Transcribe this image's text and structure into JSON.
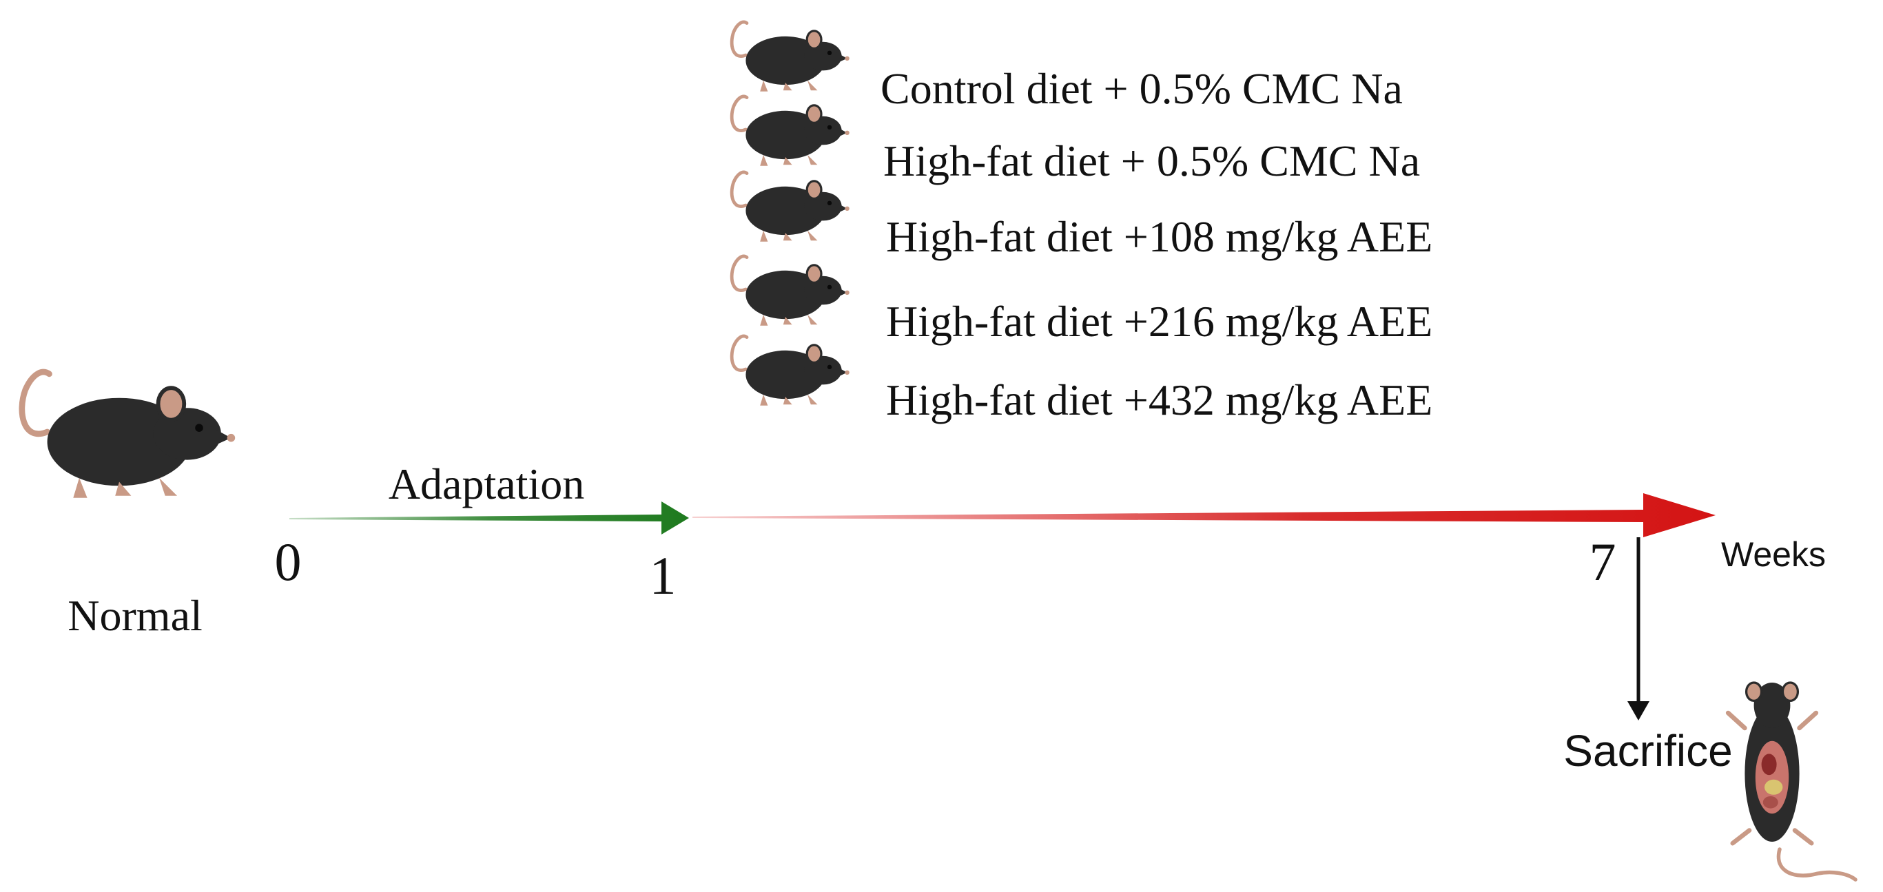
{
  "normal_label": "Normal",
  "adaptation_label": "Adaptation",
  "ticks": [
    "0",
    "1",
    "7"
  ],
  "unit_label": "Weeks",
  "sacrifice_label": "Sacrifice",
  "groups": [
    "Control diet + 0.5% CMC Na",
    "High-fat diet + 0.5% CMC Na",
    "High-fat diet +108 mg/kg AEE",
    "High-fat diet +216 mg/kg AEE",
    "High-fat diet +432 mg/kg AEE"
  ],
  "colors": {
    "adaptation_arrow": "#1e7a1e",
    "treatment_arrow": "#d41414",
    "mouse_body": "#2b2b2b",
    "mouse_skin": "#c99a86",
    "text": "#111111"
  },
  "icons": {
    "mouse": "black-mouse-icon",
    "dissected": "dissected-mouse-icon"
  }
}
